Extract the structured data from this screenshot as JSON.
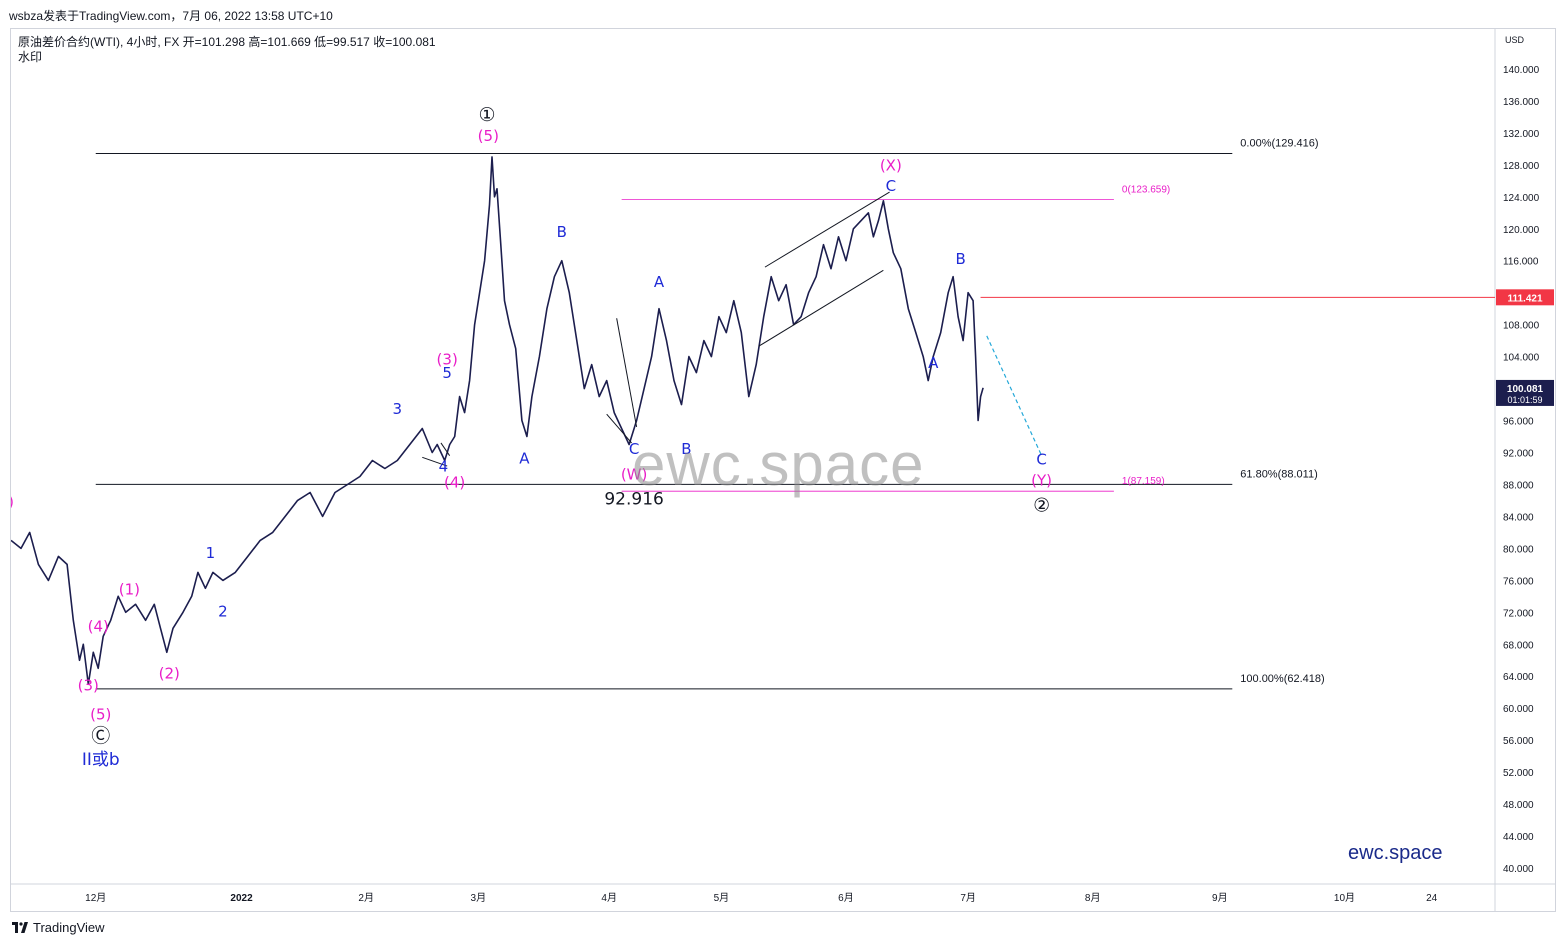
{
  "header": {
    "title": "wsbza发表于TradingView.com，7月 06, 2022 13:58 UTC+10"
  },
  "legend": {
    "symbol": "原油差价合约(WTI), 4小时, FX",
    "open": "开=101.298",
    "high": "高=101.669",
    "low": "低=99.517",
    "close": "收=100.081",
    "watermark_label": "水印"
  },
  "footer": {
    "brand": "TradingView"
  },
  "overlay": {
    "watermark": "ewc.space",
    "brand_text": "ewc.space"
  },
  "colors": {
    "candle": "#1c1e4e",
    "magenta": "#e91ec8",
    "blue": "#1f2bd6",
    "black": "#131722",
    "red": "#f23645",
    "cyan": "#24a8d8",
    "price_tag_bg": "#1c1e4e"
  },
  "chart_data": {
    "type": "line",
    "title": "原油差价合约(WTI), 4小时, FX",
    "currency": "USD",
    "ylim": [
      38,
      145
    ],
    "y_ticks": [
      "140.000",
      "136.000",
      "132.000",
      "128.000",
      "124.000",
      "120.000",
      "116.000",
      "112.000",
      "108.000",
      "104.000",
      "100.000",
      "96.000",
      "92.000",
      "88.000",
      "84.000",
      "80.000",
      "76.000",
      "72.000",
      "68.000",
      "64.000",
      "60.000",
      "56.000",
      "52.000",
      "48.000",
      "44.000",
      "40.000"
    ],
    "x_ticks": [
      {
        "label": "12月",
        "t": 0.68
      },
      {
        "label": "2022",
        "t": 1.85
      },
      {
        "label": "2月",
        "t": 2.85
      },
      {
        "label": "3月",
        "t": 3.75
      },
      {
        "label": "4月",
        "t": 4.8
      },
      {
        "label": "5月",
        "t": 5.7
      },
      {
        "label": "6月",
        "t": 6.7
      },
      {
        "label": "7月",
        "t": 7.68
      },
      {
        "label": "8月",
        "t": 8.68
      },
      {
        "label": "9月",
        "t": 9.7
      },
      {
        "label": "10月",
        "t": 10.7
      },
      {
        "label": "24",
        "t": 11.4
      }
    ],
    "xlim": [
      0,
      11.9
    ],
    "series": [
      {
        "values": [
          [
            0.0,
            81
          ],
          [
            0.08,
            80
          ],
          [
            0.15,
            82
          ],
          [
            0.22,
            78
          ],
          [
            0.3,
            76
          ],
          [
            0.38,
            79
          ],
          [
            0.45,
            78
          ],
          [
            0.5,
            71
          ],
          [
            0.55,
            66
          ],
          [
            0.58,
            68
          ],
          [
            0.62,
            63
          ],
          [
            0.66,
            67
          ],
          [
            0.7,
            65
          ],
          [
            0.74,
            69
          ],
          [
            0.8,
            71
          ],
          [
            0.86,
            74
          ],
          [
            0.92,
            72
          ],
          [
            1.0,
            73
          ],
          [
            1.08,
            71
          ],
          [
            1.15,
            73
          ],
          [
            1.2,
            70
          ],
          [
            1.25,
            67
          ],
          [
            1.3,
            70
          ],
          [
            1.38,
            72
          ],
          [
            1.45,
            74
          ],
          [
            1.5,
            77
          ],
          [
            1.56,
            75
          ],
          [
            1.62,
            77
          ],
          [
            1.7,
            76
          ],
          [
            1.8,
            77
          ],
          [
            1.9,
            79
          ],
          [
            2.0,
            81
          ],
          [
            2.1,
            82
          ],
          [
            2.2,
            84
          ],
          [
            2.3,
            86
          ],
          [
            2.4,
            87
          ],
          [
            2.5,
            84
          ],
          [
            2.6,
            87
          ],
          [
            2.7,
            88
          ],
          [
            2.8,
            89
          ],
          [
            2.9,
            91
          ],
          [
            3.0,
            90
          ],
          [
            3.1,
            91
          ],
          [
            3.2,
            93
          ],
          [
            3.3,
            95
          ],
          [
            3.38,
            92
          ],
          [
            3.42,
            93
          ],
          [
            3.48,
            91
          ],
          [
            3.52,
            93
          ],
          [
            3.56,
            94
          ],
          [
            3.6,
            99
          ],
          [
            3.64,
            97
          ],
          [
            3.68,
            101
          ],
          [
            3.72,
            108
          ],
          [
            3.76,
            112
          ],
          [
            3.8,
            116
          ],
          [
            3.84,
            123
          ],
          [
            3.86,
            129
          ],
          [
            3.88,
            124
          ],
          [
            3.9,
            125
          ],
          [
            3.93,
            118
          ],
          [
            3.96,
            111
          ],
          [
            4.0,
            108
          ],
          [
            4.05,
            105
          ],
          [
            4.1,
            96
          ],
          [
            4.14,
            94
          ],
          [
            4.18,
            99
          ],
          [
            4.24,
            104
          ],
          [
            4.3,
            110
          ],
          [
            4.36,
            114
          ],
          [
            4.42,
            116
          ],
          [
            4.48,
            112
          ],
          [
            4.54,
            106
          ],
          [
            4.6,
            100
          ],
          [
            4.66,
            103
          ],
          [
            4.72,
            99
          ],
          [
            4.78,
            101
          ],
          [
            4.84,
            97
          ],
          [
            4.9,
            95
          ],
          [
            4.96,
            93
          ],
          [
            5.02,
            96
          ],
          [
            5.08,
            100
          ],
          [
            5.14,
            104
          ],
          [
            5.2,
            110
          ],
          [
            5.26,
            106
          ],
          [
            5.32,
            101
          ],
          [
            5.38,
            98
          ],
          [
            5.44,
            104
          ],
          [
            5.5,
            102
          ],
          [
            5.56,
            106
          ],
          [
            5.62,
            104
          ],
          [
            5.68,
            109
          ],
          [
            5.74,
            107
          ],
          [
            5.8,
            111
          ],
          [
            5.86,
            107
          ],
          [
            5.92,
            99
          ],
          [
            5.98,
            103
          ],
          [
            6.04,
            109
          ],
          [
            6.1,
            114
          ],
          [
            6.16,
            111
          ],
          [
            6.22,
            113
          ],
          [
            6.28,
            108
          ],
          [
            6.34,
            109
          ],
          [
            6.4,
            112
          ],
          [
            6.46,
            114
          ],
          [
            6.52,
            118
          ],
          [
            6.58,
            115
          ],
          [
            6.64,
            119
          ],
          [
            6.7,
            116
          ],
          [
            6.76,
            120
          ],
          [
            6.82,
            121
          ],
          [
            6.88,
            122
          ],
          [
            6.92,
            119
          ],
          [
            6.96,
            121
          ],
          [
            7.0,
            123.5
          ],
          [
            7.04,
            120
          ],
          [
            7.08,
            117
          ],
          [
            7.14,
            115
          ],
          [
            7.2,
            110
          ],
          [
            7.26,
            107
          ],
          [
            7.32,
            104
          ],
          [
            7.36,
            101
          ],
          [
            7.4,
            104
          ],
          [
            7.46,
            107
          ],
          [
            7.52,
            112
          ],
          [
            7.56,
            114
          ],
          [
            7.6,
            109
          ],
          [
            7.64,
            106
          ],
          [
            7.68,
            112
          ],
          [
            7.72,
            111
          ],
          [
            7.74,
            104
          ],
          [
            7.76,
            96
          ],
          [
            7.78,
            99
          ],
          [
            7.8,
            100.1
          ]
        ]
      }
    ],
    "horizontal_levels": [
      {
        "label": "0.00%(129.416)",
        "value": 129.416,
        "color": "black"
      },
      {
        "label": "0(123.659)",
        "value": 123.659,
        "color": "magenta"
      },
      {
        "label": "61.80%(88.011)",
        "value": 88.011,
        "color": "black"
      },
      {
        "label": "1(87.159)",
        "value": 87.159,
        "color": "magenta"
      },
      {
        "label": "100.00%(62.418)",
        "value": 62.418,
        "color": "black"
      },
      {
        "label": "111.421",
        "value": 111.421,
        "color": "red"
      }
    ],
    "price_tags": [
      {
        "label": "111.421",
        "value": 111.421
      },
      {
        "label": "100.081",
        "sub": "01:01:59",
        "value": 100.081
      }
    ],
    "annotations": [
      {
        "text": "①",
        "t": 3.82,
        "v": 133.5,
        "color": "black",
        "circled": true
      },
      {
        "text": "(5)",
        "t": 3.83,
        "v": 131,
        "color": "magenta"
      },
      {
        "text": "(X)",
        "t": 7.06,
        "v": 127.3,
        "color": "magenta"
      },
      {
        "text": "C",
        "t": 7.06,
        "v": 124.7,
        "color": "blue"
      },
      {
        "text": "B",
        "t": 4.42,
        "v": 119,
        "color": "blue"
      },
      {
        "text": "A",
        "t": 5.2,
        "v": 112.7,
        "color": "blue"
      },
      {
        "text": "B",
        "t": 7.62,
        "v": 115.6,
        "color": "blue"
      },
      {
        "text": "A",
        "t": 7.4,
        "v": 102.6,
        "color": "blue"
      },
      {
        "text": "(3)",
        "t": 3.5,
        "v": 103,
        "color": "magenta"
      },
      {
        "text": "5",
        "t": 3.5,
        "v": 101.3,
        "color": "blue"
      },
      {
        "text": "3",
        "t": 3.1,
        "v": 96.8,
        "color": "blue"
      },
      {
        "text": "4",
        "t": 3.47,
        "v": 89.6,
        "color": "blue"
      },
      {
        "text": "(4)",
        "t": 3.56,
        "v": 87.6,
        "color": "magenta"
      },
      {
        "text": "A",
        "t": 4.12,
        "v": 90.6,
        "color": "blue"
      },
      {
        "text": "C",
        "t": 5.0,
        "v": 91.8,
        "color": "blue"
      },
      {
        "text": "B",
        "t": 5.42,
        "v": 91.8,
        "color": "blue"
      },
      {
        "text": "(W)",
        "t": 5.0,
        "v": 88.6,
        "color": "magenta"
      },
      {
        "text": "92.916",
        "t": 5.0,
        "v": 85.5,
        "color": "black"
      },
      {
        "text": "C",
        "t": 8.27,
        "v": 90.5,
        "color": "blue"
      },
      {
        "text": "(Y)",
        "t": 8.27,
        "v": 87.9,
        "color": "magenta"
      },
      {
        "text": "②",
        "t": 8.27,
        "v": 84.6,
        "color": "black",
        "circled": true
      },
      {
        "text": "1",
        "t": 1.6,
        "v": 78.8,
        "color": "blue"
      },
      {
        "text": "2",
        "t": 1.7,
        "v": 71.5,
        "color": "blue"
      },
      {
        "text": "(1)",
        "t": 0.95,
        "v": 74.2,
        "color": "magenta"
      },
      {
        "text": "(4)",
        "t": 0.7,
        "v": 69.6,
        "color": "magenta"
      },
      {
        "text": "(2)",
        "t": 1.27,
        "v": 63.7,
        "color": "magenta"
      },
      {
        "text": "(3)",
        "t": 0.62,
        "v": 62.2,
        "color": "magenta"
      },
      {
        "text": "(5)",
        "t": 0.72,
        "v": 58.6,
        "color": "magenta"
      },
      {
        "text": "Ⓒ",
        "t": 0.72,
        "v": 55.8,
        "color": "black",
        "circled": true
      },
      {
        "text": "II或b",
        "t": 0.72,
        "v": 52.9,
        "color": "blue"
      },
      {
        "text": ")",
        "t": 0.0,
        "v": 85.2,
        "color": "magenta"
      }
    ]
  }
}
